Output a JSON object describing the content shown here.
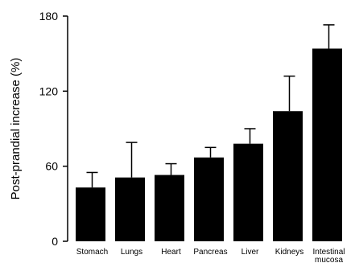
{
  "chart_data": {
    "type": "bar",
    "title": "",
    "xlabel": "",
    "ylabel": "Post-prandial increase (%)",
    "ylim": [
      0,
      180
    ],
    "yticks": [
      0,
      60,
      120,
      180
    ],
    "grid": false,
    "categories": [
      [
        "Stomach"
      ],
      [
        "Lungs"
      ],
      [
        "Heart"
      ],
      [
        "Pancreas"
      ],
      [
        "Liver"
      ],
      [
        "Kidneys"
      ],
      [
        "Intestinal",
        "mucosa"
      ]
    ],
    "values": [
      43,
      51,
      53,
      67,
      78,
      104,
      154
    ],
    "error_upper": [
      12,
      28,
      9,
      8,
      12,
      28,
      19
    ],
    "bar_color": "#000000"
  }
}
